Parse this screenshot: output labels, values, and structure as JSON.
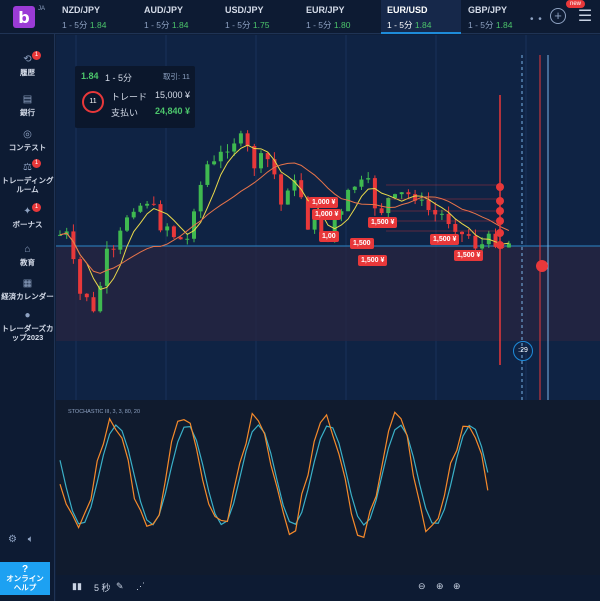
{
  "app": {
    "logo": "b",
    "lang": "JA",
    "new_badge": "new"
  },
  "pairs": [
    {
      "name": "NZD/JPY",
      "timeframe": "1 - 5分",
      "payout": "1.84",
      "active": false
    },
    {
      "name": "AUD/JPY",
      "timeframe": "1 - 5分",
      "payout": "1.84",
      "active": false
    },
    {
      "name": "USD/JPY",
      "timeframe": "1 - 5分",
      "payout": "1.75",
      "active": false
    },
    {
      "name": "EUR/JPY",
      "timeframe": "1 - 5分",
      "payout": "1.80",
      "active": false
    },
    {
      "name": "EUR/USD",
      "timeframe": "1 - 5分",
      "payout": "1.84",
      "active": true
    },
    {
      "name": "GBP/JPY",
      "timeframe": "1 - 5分",
      "payout": "1.84",
      "active": false
    }
  ],
  "sidebar": [
    {
      "label": "履歴",
      "icon": "history-icon",
      "badge": "1"
    },
    {
      "label": "銀行",
      "icon": "bank-icon",
      "badge": ""
    },
    {
      "label": "コンテスト",
      "icon": "contest-icon",
      "badge": ""
    },
    {
      "label": "トレーディング\nルーム",
      "icon": "trading-room-icon",
      "badge": "1"
    },
    {
      "label": "ボーナス",
      "icon": "gift-icon",
      "badge": "1"
    },
    {
      "label": "教育",
      "icon": "education-icon",
      "badge": ""
    },
    {
      "label": "経済カレンダー",
      "icon": "calendar-icon",
      "badge": ""
    },
    {
      "label": "トレーダーズカ\nップ2023",
      "icon": "trophy-icon",
      "badge": ""
    }
  ],
  "help": {
    "q": "?",
    "label": "オンライン\nヘルプ"
  },
  "info": {
    "payout": "1.84",
    "timeframe": "1 - 5分",
    "trades_label": "取引: 11",
    "circle": "11",
    "trade_label": "トレード",
    "trade_value": "15,000 ¥",
    "payout_label": "支払い",
    "payout_value": "24,840 ¥"
  },
  "trade_tags": [
    "1,000 ¥",
    "1,000 ¥",
    "1,00",
    "1,500",
    "1,500 ¥",
    "1,500 ¥",
    "1,500 ¥",
    "1,500 ¥"
  ],
  "stochastic_label": "STOCHASTIC III, 3, 3, 80, 20",
  "timer": ":29",
  "bottom": {
    "timeframe": "5 秒"
  },
  "colors": {
    "bg": "#0f2344",
    "up": "#3fb950",
    "down": "#e8383a",
    "accent": "#1e8bd9",
    "ma1": "#e8d84a",
    "ma2": "#e8744a",
    "stoch_k": "#f58a2b",
    "stoch_d": "#3ab0c8"
  }
}
